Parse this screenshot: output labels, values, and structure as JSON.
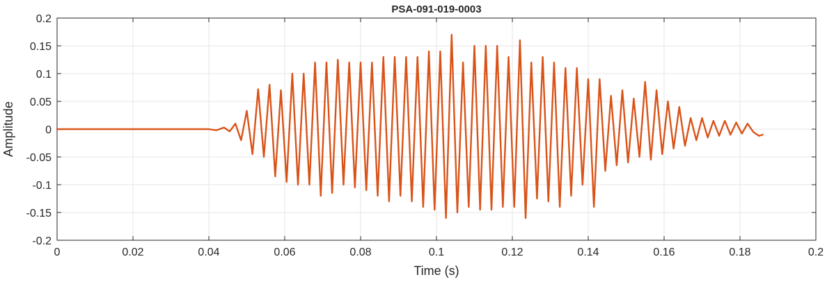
{
  "chart_data": {
    "type": "line",
    "title": "PSA-091-019-0003",
    "xlabel": "Time (s)",
    "ylabel": "Amplitude",
    "xlim": [
      0,
      0.2
    ],
    "ylim": [
      -0.2,
      0.2
    ],
    "x_ticks": [
      0,
      0.02,
      0.04,
      0.06,
      0.08,
      0.1,
      0.12,
      0.14,
      0.16,
      0.18,
      0.2
    ],
    "x_tick_labels": [
      "0",
      "0.02",
      "0.04",
      "0.06",
      "0.08",
      "0.1",
      "0.12",
      "0.14",
      "0.16",
      "0.18",
      "0.2"
    ],
    "y_ticks": [
      -0.2,
      -0.15,
      -0.1,
      -0.05,
      0,
      0.05,
      0.1,
      0.15,
      0.2
    ],
    "y_tick_labels": [
      "-0.2",
      "-0.15",
      "-0.1",
      "-0.05",
      "0",
      "0.05",
      "0.1",
      "0.15",
      "0.2"
    ],
    "grid": true,
    "colors": {
      "series": "#d95319",
      "grid": "#e6e6e6",
      "axes": "#262626"
    },
    "series": [
      {
        "x": [
          0,
          0.03,
          0.04,
          0.042,
          0.044,
          0.0455,
          0.047,
          0.0485,
          0.05,
          0.0515,
          0.053,
          0.0545,
          0.056,
          0.0575,
          0.059,
          0.0605,
          0.062,
          0.0635,
          0.065,
          0.0665,
          0.068,
          0.0695,
          0.071,
          0.0725,
          0.074,
          0.0755,
          0.077,
          0.0785,
          0.08,
          0.0815,
          0.083,
          0.0845,
          0.086,
          0.0875,
          0.089,
          0.0905,
          0.092,
          0.0935,
          0.095,
          0.0965,
          0.098,
          0.0995,
          0.101,
          0.1025,
          0.104,
          0.1055,
          0.107,
          0.1085,
          0.11,
          0.1115,
          0.113,
          0.1145,
          0.116,
          0.1175,
          0.119,
          0.1205,
          0.122,
          0.1235,
          0.125,
          0.1265,
          0.128,
          0.1295,
          0.131,
          0.1325,
          0.134,
          0.1355,
          0.137,
          0.1385,
          0.14,
          0.1415,
          0.143,
          0.1445,
          0.146,
          0.1475,
          0.149,
          0.1505,
          0.152,
          0.1535,
          0.155,
          0.1565,
          0.158,
          0.1595,
          0.161,
          0.1625,
          0.164,
          0.1655,
          0.167,
          0.1685,
          0.17,
          0.1715,
          0.173,
          0.1745,
          0.176,
          0.1775,
          0.179,
          0.1805,
          0.182,
          0.1835,
          0.185,
          0.186
        ],
        "y": [
          0,
          0,
          0,
          -0.002,
          0.003,
          -0.004,
          0.01,
          -0.02,
          0.033,
          -0.045,
          0.072,
          -0.05,
          0.08,
          -0.085,
          0.07,
          -0.095,
          0.1,
          -0.1,
          0.1,
          -0.1,
          0.12,
          -0.12,
          0.12,
          -0.115,
          0.125,
          -0.1,
          0.12,
          -0.105,
          0.12,
          -0.11,
          0.12,
          -0.12,
          0.13,
          -0.13,
          0.13,
          -0.12,
          0.13,
          -0.13,
          0.13,
          -0.14,
          0.14,
          -0.145,
          0.14,
          -0.16,
          0.17,
          -0.15,
          0.12,
          -0.14,
          0.15,
          -0.145,
          0.15,
          -0.145,
          0.15,
          -0.14,
          0.13,
          -0.14,
          0.16,
          -0.16,
          0.12,
          -0.125,
          0.13,
          -0.13,
          0.12,
          -0.14,
          0.11,
          -0.12,
          0.11,
          -0.1,
          0.09,
          -0.14,
          0.09,
          -0.075,
          0.06,
          -0.065,
          0.07,
          -0.06,
          0.055,
          -0.05,
          0.085,
          -0.055,
          0.07,
          -0.045,
          0.05,
          -0.035,
          0.04,
          -0.03,
          0.02,
          -0.02,
          0.02,
          -0.015,
          0.015,
          -0.012,
          0.015,
          -0.01,
          0.012,
          -0.008,
          0.01,
          -0.005,
          -0.012,
          -0.01
        ]
      }
    ]
  }
}
